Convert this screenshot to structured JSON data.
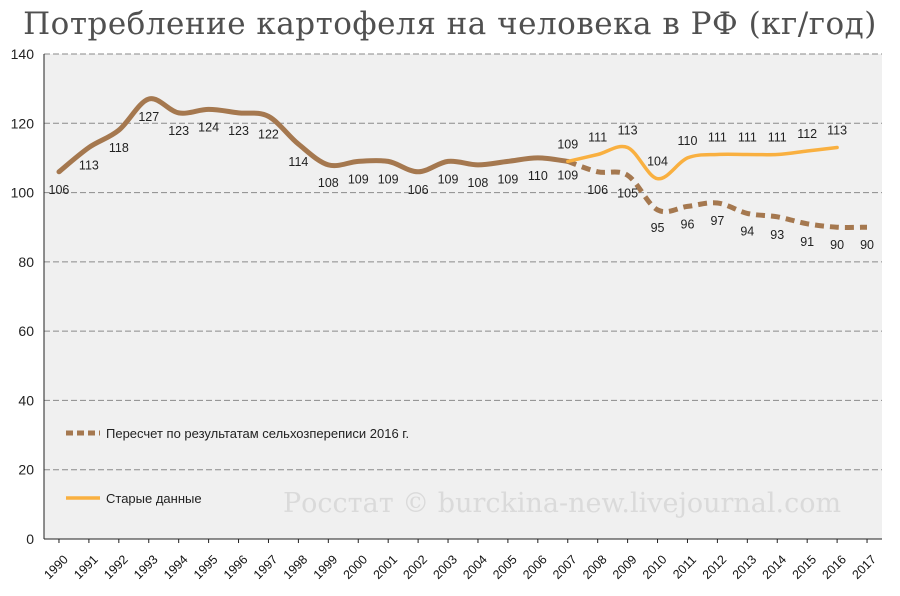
{
  "title": "Потребление картофеля на человека в РФ (кг/год)",
  "watermark": "Росстат © burckina-new.livejournal.com",
  "colors": {
    "plot_bg": "#f0f0f0",
    "gridline": "#8a8a8a",
    "recalc_series": "#a5784f",
    "old_series": "#f9b040"
  },
  "chart_data": {
    "type": "line",
    "title": "Потребление картофеля на человека в РФ (кг/год)",
    "xlabel": "",
    "ylabel": "",
    "ylim": [
      0,
      140
    ],
    "yticks": [
      0,
      20,
      40,
      60,
      80,
      100,
      120,
      140
    ],
    "grid": true,
    "legend_position": "bottom-left",
    "x": [
      "1990",
      "1991",
      "1992",
      "1993",
      "1994",
      "1995",
      "1996",
      "1997",
      "1998",
      "1999",
      "2000",
      "2001",
      "2002",
      "2003",
      "2004",
      "2005",
      "2006",
      "2007",
      "2008",
      "2009",
      "2010",
      "2011",
      "2012",
      "2013",
      "2014",
      "2015",
      "2016",
      "2017"
    ],
    "series": [
      {
        "name": "Пересчет по результатам сельхозпереписи 2016 г.",
        "style": "dashed",
        "color": "#a5784f",
        "values": [
          106,
          113,
          118,
          127,
          123,
          124,
          123,
          122,
          114,
          108,
          109,
          109,
          106,
          109,
          108,
          109,
          110,
          109,
          106,
          105,
          95,
          96,
          97,
          94,
          93,
          91,
          90,
          90
        ]
      },
      {
        "name": "Старые данные",
        "style": "solid",
        "color": "#f9b040",
        "values": [
          null,
          null,
          null,
          null,
          null,
          null,
          null,
          null,
          null,
          null,
          null,
          null,
          null,
          null,
          null,
          null,
          null,
          109,
          111,
          113,
          104,
          110,
          111,
          111,
          111,
          112,
          113,
          null
        ]
      }
    ]
  }
}
